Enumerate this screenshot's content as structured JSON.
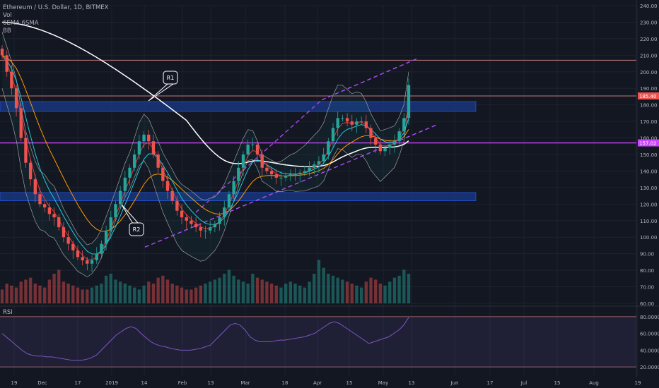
{
  "legend": {
    "title": "Ethereum / U.S. Dollar, 1D, BITMEX",
    "vol": "Vol",
    "ema": "6EMA 6SMA",
    "bb": "BB"
  },
  "rsi_label": "RSI",
  "annotations": {
    "r1": "R1",
    "r2": "R2"
  },
  "price_markers": {
    "upper": "185.40",
    "lower": "157.02"
  },
  "colors": {
    "background": "#131722",
    "up": "#26a69a",
    "down": "#ef5350",
    "blue_zone": "#1a3a8a",
    "channel": "#b44cff",
    "support": "#cc44ff",
    "resistance_marker": "#ef5350",
    "ma_white": "#ffffff",
    "ma_orange": "#ff9800",
    "ma_cyan": "#26c6da",
    "ma_red": "#e53935",
    "rsi_line": "#7e57c2"
  },
  "chart_data": {
    "type": "candlestick",
    "title": "Ethereum / U.S. Dollar, 1D, BITMEX",
    "ylim": [
      60,
      240
    ],
    "y_ticks": [
      "240.00",
      "230.00",
      "220.00",
      "210.00",
      "200.00",
      "190.00",
      "180.00",
      "170.00",
      "160.00",
      "150.00",
      "140.00",
      "130.00",
      "120.00",
      "110.00",
      "100.00",
      "90.00",
      "80.00",
      "70.00",
      "60.00"
    ],
    "x_ticks": [
      "19",
      "Dec",
      "17",
      "2019",
      "14",
      "Feb",
      "13",
      "Mar",
      "18",
      "Apr",
      "15",
      "May",
      "13",
      "Jun",
      "17",
      "Jul",
      "15",
      "Aug",
      "19"
    ],
    "close_series": [
      210,
      200,
      190,
      178,
      160,
      145,
      135,
      126,
      120,
      118,
      114,
      112,
      106,
      100,
      96,
      92,
      88,
      86,
      84,
      86,
      90,
      96,
      104,
      112,
      120,
      128,
      136,
      142,
      150,
      158,
      162,
      158,
      150,
      142,
      134,
      128,
      122,
      116,
      112,
      110,
      108,
      106,
      104,
      104,
      106,
      108,
      112,
      118,
      126,
      134,
      142,
      150,
      156,
      156,
      150,
      142,
      140,
      138,
      136,
      136,
      137,
      138,
      138,
      139,
      140,
      142,
      144,
      146,
      150,
      158,
      166,
      172,
      172,
      170,
      168,
      170,
      170,
      166,
      160,
      156,
      152,
      154,
      156,
      158,
      164,
      172,
      192
    ],
    "resistance_zone": [
      176,
      182
    ],
    "support_zone": [
      122,
      127
    ],
    "upper_line": 207,
    "resistance_line": 185.4,
    "support_line": 157.02,
    "rsi": {
      "ylim": [
        10,
        90
      ],
      "y_ticks": [
        "80.0000",
        "60.0000",
        "40.0000",
        "20.0000"
      ],
      "upper_band": 80,
      "lower_band": 20,
      "values": [
        60,
        55,
        50,
        45,
        40,
        36,
        34,
        33,
        33,
        32,
        32,
        31,
        30,
        29,
        28,
        28,
        28,
        29,
        31,
        34,
        40,
        46,
        52,
        58,
        62,
        66,
        68,
        66,
        60,
        55,
        50,
        47,
        45,
        44,
        42,
        41,
        40,
        40,
        40,
        41,
        42,
        44,
        46,
        52,
        58,
        64,
        70,
        72,
        70,
        64,
        56,
        52,
        50,
        50,
        50,
        51,
        52,
        52,
        53,
        54,
        55,
        56,
        58,
        60,
        64,
        68,
        72,
        74,
        72,
        68,
        64,
        60,
        56,
        52,
        48,
        50,
        52,
        54,
        56,
        60,
        64,
        70,
        79
      ]
    },
    "volume": [
      14,
      20,
      18,
      16,
      22,
      24,
      26,
      20,
      18,
      16,
      24,
      30,
      34,
      22,
      20,
      18,
      16,
      14,
      14,
      16,
      18,
      20,
      28,
      30,
      24,
      22,
      20,
      18,
      16,
      14,
      18,
      22,
      20,
      26,
      28,
      24,
      20,
      18,
      16,
      14,
      14,
      16,
      18,
      20,
      22,
      24,
      26,
      30,
      34,
      28,
      24,
      22,
      20,
      30,
      26,
      24,
      22,
      20,
      18,
      16,
      20,
      22,
      20,
      18,
      16,
      22,
      30,
      44,
      36,
      30,
      28,
      26,
      24,
      22,
      20,
      18,
      16,
      22,
      26,
      24,
      20,
      18,
      22,
      26,
      28,
      34,
      30
    ]
  }
}
